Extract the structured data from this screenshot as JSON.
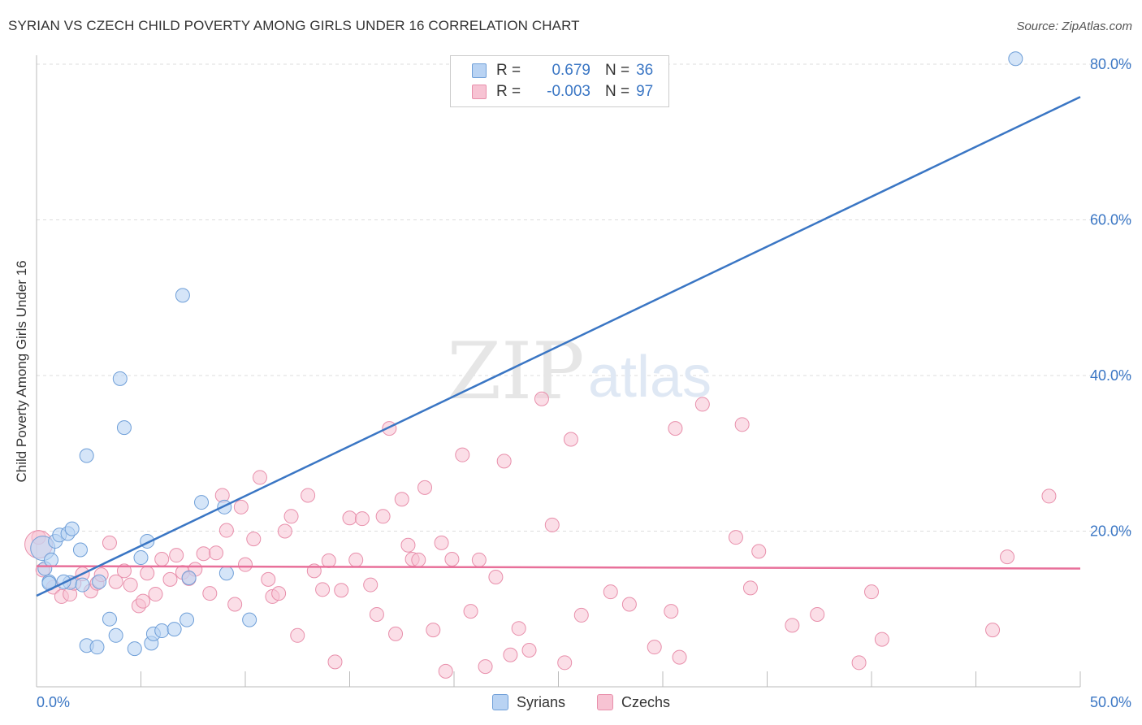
{
  "title": "SYRIAN VS CZECH CHILD POVERTY AMONG GIRLS UNDER 16 CORRELATION CHART",
  "source": "Source: ZipAtlas.com",
  "watermark": {
    "zip": "ZIP",
    "atlas": "atlas"
  },
  "legend": {
    "syrians": {
      "r_label": "R =",
      "r_value": "0.679",
      "n_label": "N =",
      "n_value": "36"
    },
    "czechs": {
      "r_label": "R =",
      "r_value": "-0.003",
      "n_label": "N =",
      "n_value": "97"
    }
  },
  "bottom_legend": {
    "syrians": "Syrians",
    "czechs": "Czechs"
  },
  "colors": {
    "syrians_fill": "#b9d3f3",
    "syrians_stroke": "#6f9fd8",
    "syrians_line": "#3a76c4",
    "czechs_fill": "#f7c3d3",
    "czechs_stroke": "#e88fab",
    "czechs_line": "#e8709a",
    "axis_text": "#3a76c4",
    "grid": "#dddddd"
  },
  "chart_data": {
    "type": "scatter",
    "title": "SYRIAN VS CZECH CHILD POVERTY AMONG GIRLS UNDER 16 CORRELATION CHART",
    "xlabel": "",
    "ylabel": "Child Poverty Among Girls Under 16",
    "xlim": [
      0,
      50
    ],
    "ylim": [
      0,
      80
    ],
    "x_tick_labels": [
      "0.0%",
      "50.0%"
    ],
    "y_ticks": [
      20,
      40,
      60,
      80
    ],
    "y_tick_labels": [
      "20.0%",
      "40.0%",
      "60.0%",
      "80.0%"
    ],
    "series": [
      {
        "name": "Syrians",
        "r": 0.679,
        "n": 36,
        "trend": {
          "x": [
            0,
            50
          ],
          "y": [
            11.7,
            75.8
          ]
        },
        "points": [
          [
            0.3,
            17.8
          ],
          [
            0.4,
            15.2
          ],
          [
            0.6,
            13.5
          ],
          [
            0.7,
            16.3
          ],
          [
            0.6,
            13.3
          ],
          [
            0.9,
            18.7
          ],
          [
            1.1,
            19.5
          ],
          [
            1.5,
            19.7
          ],
          [
            1.7,
            20.3
          ],
          [
            1.6,
            13.4
          ],
          [
            2.1,
            17.6
          ],
          [
            2.2,
            13.1
          ],
          [
            2.4,
            5.3
          ],
          [
            2.9,
            5.1
          ],
          [
            3.0,
            13.5
          ],
          [
            3.5,
            8.7
          ],
          [
            3.8,
            6.6
          ],
          [
            4.0,
            39.6
          ],
          [
            4.2,
            33.3
          ],
          [
            4.7,
            4.9
          ],
          [
            5.0,
            16.6
          ],
          [
            5.3,
            18.7
          ],
          [
            5.5,
            5.6
          ],
          [
            5.6,
            6.8
          ],
          [
            6.0,
            7.2
          ],
          [
            6.6,
            7.4
          ],
          [
            7.0,
            50.3
          ],
          [
            7.2,
            8.6
          ],
          [
            7.3,
            14.0
          ],
          [
            7.9,
            23.7
          ],
          [
            2.4,
            29.7
          ],
          [
            9.1,
            14.6
          ],
          [
            10.2,
            8.6
          ],
          [
            1.3,
            13.5
          ],
          [
            46.9,
            80.7
          ],
          [
            9.0,
            23.1
          ]
        ]
      },
      {
        "name": "Czechs",
        "r": -0.003,
        "n": 97,
        "trend": {
          "x": [
            0,
            50
          ],
          "y": [
            15.5,
            15.2
          ]
        },
        "points": [
          [
            0.1,
            19.2
          ],
          [
            0.3,
            15.0
          ],
          [
            0.8,
            12.8
          ],
          [
            1.2,
            11.6
          ],
          [
            1.6,
            11.9
          ],
          [
            1.8,
            13.3
          ],
          [
            2.2,
            14.5
          ],
          [
            2.6,
            12.3
          ],
          [
            2.9,
            13.3
          ],
          [
            3.1,
            14.4
          ],
          [
            3.5,
            18.5
          ],
          [
            3.8,
            13.5
          ],
          [
            4.2,
            14.9
          ],
          [
            4.5,
            13.1
          ],
          [
            4.9,
            10.4
          ],
          [
            5.1,
            11.0
          ],
          [
            5.3,
            14.6
          ],
          [
            5.7,
            11.9
          ],
          [
            6.0,
            16.4
          ],
          [
            6.4,
            13.8
          ],
          [
            6.7,
            16.9
          ],
          [
            7.0,
            14.7
          ],
          [
            7.3,
            13.9
          ],
          [
            7.6,
            15.1
          ],
          [
            8.0,
            17.1
          ],
          [
            8.3,
            12.0
          ],
          [
            8.6,
            17.2
          ],
          [
            8.9,
            24.6
          ],
          [
            9.1,
            20.1
          ],
          [
            9.5,
            10.6
          ],
          [
            9.8,
            23.1
          ],
          [
            10.0,
            15.7
          ],
          [
            10.4,
            19.0
          ],
          [
            10.7,
            26.9
          ],
          [
            11.1,
            13.8
          ],
          [
            11.3,
            11.6
          ],
          [
            11.6,
            12.0
          ],
          [
            11.9,
            20.0
          ],
          [
            12.2,
            21.9
          ],
          [
            12.5,
            6.6
          ],
          [
            13.0,
            24.6
          ],
          [
            13.3,
            14.9
          ],
          [
            13.7,
            12.5
          ],
          [
            14.0,
            16.2
          ],
          [
            14.3,
            3.2
          ],
          [
            14.6,
            12.4
          ],
          [
            15.0,
            21.7
          ],
          [
            15.3,
            16.3
          ],
          [
            15.6,
            21.6
          ],
          [
            16.0,
            13.1
          ],
          [
            16.3,
            9.3
          ],
          [
            16.6,
            21.9
          ],
          [
            16.9,
            33.2
          ],
          [
            17.2,
            6.8
          ],
          [
            17.5,
            24.1
          ],
          [
            17.8,
            18.2
          ],
          [
            18.0,
            16.4
          ],
          [
            18.3,
            16.3
          ],
          [
            18.6,
            25.6
          ],
          [
            19.0,
            7.3
          ],
          [
            19.4,
            18.5
          ],
          [
            19.6,
            2.0
          ],
          [
            19.9,
            16.4
          ],
          [
            20.4,
            29.8
          ],
          [
            20.8,
            9.7
          ],
          [
            21.2,
            16.3
          ],
          [
            21.5,
            2.6
          ],
          [
            22.0,
            14.1
          ],
          [
            22.4,
            29.0
          ],
          [
            22.7,
            4.1
          ],
          [
            23.1,
            7.5
          ],
          [
            23.6,
            4.7
          ],
          [
            24.2,
            37.0
          ],
          [
            24.7,
            20.8
          ],
          [
            25.3,
            3.1
          ],
          [
            25.6,
            31.8
          ],
          [
            26.1,
            9.2
          ],
          [
            27.5,
            12.2
          ],
          [
            28.4,
            10.6
          ],
          [
            29.6,
            5.1
          ],
          [
            30.4,
            9.7
          ],
          [
            30.6,
            33.2
          ],
          [
            30.8,
            3.8
          ],
          [
            31.9,
            36.3
          ],
          [
            33.5,
            19.2
          ],
          [
            33.8,
            33.7
          ],
          [
            34.2,
            12.7
          ],
          [
            34.6,
            17.4
          ],
          [
            36.2,
            7.9
          ],
          [
            37.4,
            9.3
          ],
          [
            39.4,
            3.1
          ],
          [
            40.0,
            12.2
          ],
          [
            40.5,
            6.1
          ],
          [
            45.8,
            7.3
          ],
          [
            46.5,
            16.7
          ],
          [
            48.5,
            24.5
          ],
          [
            0.1,
            18.3
          ]
        ]
      }
    ]
  }
}
